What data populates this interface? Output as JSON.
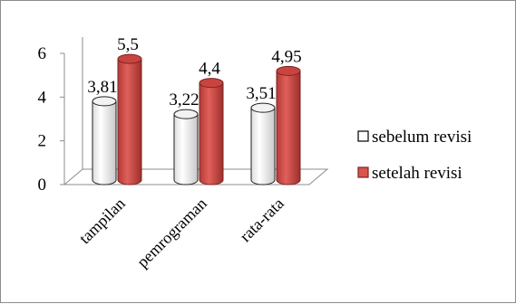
{
  "chart_data": {
    "type": "bar",
    "style": "3d-cylinder",
    "categories": [
      "tampilan",
      "pemrograman",
      "rata-rata"
    ],
    "series": [
      {
        "name": "sebelum revisi",
        "values": [
          3.81,
          3.22,
          3.51
        ],
        "labels": [
          "3,81",
          "3,22",
          "3,51"
        ],
        "color": "#ffffff"
      },
      {
        "name": "setelah revisi",
        "values": [
          5.5,
          4.4,
          4.95
        ],
        "labels": [
          "5,5",
          "4,4",
          "4,95"
        ],
        "color": "#d9534f"
      }
    ],
    "yticks": [
      "0",
      "2",
      "4",
      "6"
    ],
    "ylim": [
      0,
      6
    ],
    "grid": false,
    "legend_position": "right"
  }
}
